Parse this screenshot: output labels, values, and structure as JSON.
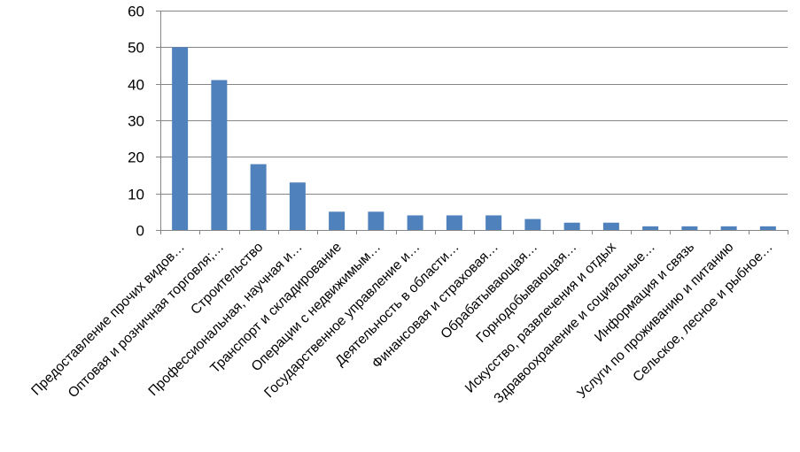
{
  "chart_data": {
    "type": "bar",
    "categories": [
      "Предоставление прочих видов…",
      "Оптовая и розничная торговля;…",
      "Строительство",
      "Профессиональная, научная и…",
      "Транспорт и складирование",
      "Операции с недвижимым…",
      "Государственное управление и…",
      "Деятельность в области…",
      "Финансовая и страховая…",
      "Обрабатывающая…",
      "Горнодобывающая…",
      "Искусство, развлечения и отдых",
      "Здравоохранение и социальные…",
      "Информация и связь",
      "Услуги по проживанию и питанию",
      "Сельское, лесное и рыбное…"
    ],
    "values": [
      50,
      41,
      18,
      13,
      5,
      5,
      4,
      4,
      4,
      3,
      2,
      2,
      1,
      1,
      1,
      1
    ],
    "ylim": [
      0,
      60
    ],
    "yticks": [
      "0",
      "10",
      "20",
      "30",
      "40",
      "50",
      "60"
    ],
    "grid": true,
    "legend": "none",
    "bar_color": "#4f81bd",
    "grid_color": "#868686"
  }
}
